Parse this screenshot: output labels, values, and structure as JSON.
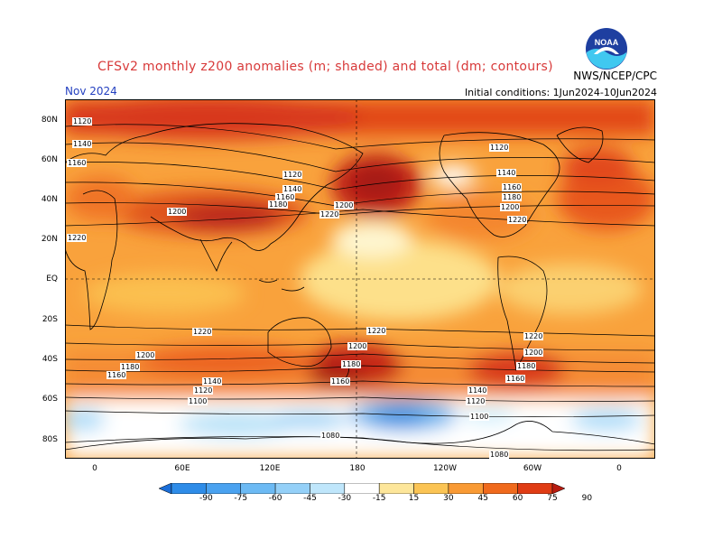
{
  "title": "CFSv2 monthly z200 anomalies (m; shaded) and total (dm; contours)",
  "month": "Nov 2024",
  "initial_conditions": "Initial conditions: 1Jun2024-10Jun2024",
  "agency": "NWS/NCEP/CPC",
  "logo_text": "NOAA",
  "y_labels": [
    "80N",
    "60N",
    "40N",
    "20N",
    "EQ",
    "20S",
    "40S",
    "60S",
    "80S"
  ],
  "x_labels": [
    "0",
    "60E",
    "120E",
    "180",
    "120W",
    "60W",
    "0"
  ],
  "colorbar_labels": [
    "-90",
    "-75",
    "-60",
    "-45",
    "-30",
    "-15",
    "15",
    "30",
    "45",
    "60",
    "75",
    "90"
  ],
  "colorbar_colors": [
    "#1a6ed8",
    "#2e8ce8",
    "#4aa2f0",
    "#6cbaf4",
    "#94d0f8",
    "#bfe6fb",
    "#ffffff",
    "#fde69a",
    "#fbc454",
    "#f99a34",
    "#f06a1c",
    "#e03c14",
    "#b81c10"
  ],
  "contour_labels": [
    "1120",
    "1140",
    "1160",
    "1180",
    "1200",
    "1220",
    "1100",
    "1080"
  ]
}
